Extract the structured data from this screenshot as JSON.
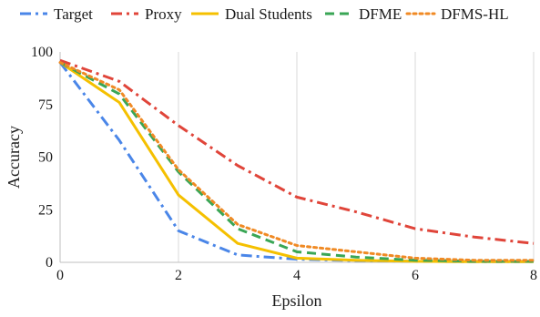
{
  "chart_data": {
    "type": "line",
    "title": "",
    "xlabel": "Epsilon",
    "ylabel": "Accuracy",
    "xlim": [
      0,
      8
    ],
    "ylim": [
      0,
      100
    ],
    "xticks": [
      0,
      2,
      4,
      6,
      8
    ],
    "yticks": [
      0,
      25,
      50,
      75,
      100
    ],
    "grid": "vertical",
    "legend_position": "top",
    "series": [
      {
        "name": "Target",
        "color": "#4a86e8",
        "dash": "dash-dot",
        "x": [
          0,
          1,
          2,
          3,
          4,
          5,
          6,
          7,
          8
        ],
        "y": [
          95,
          58,
          15,
          3.5,
          1.5,
          0.8,
          0.5,
          0.3,
          0.3
        ]
      },
      {
        "name": "Proxy",
        "color": "#e0453a",
        "dash": "dash-dot",
        "x": [
          0,
          1,
          2,
          3,
          4,
          5,
          6,
          7,
          8
        ],
        "y": [
          96,
          86,
          65,
          46,
          31,
          24,
          16,
          12,
          9
        ]
      },
      {
        "name": "Dual Students",
        "color": "#f5c000",
        "dash": "solid",
        "x": [
          0,
          1,
          2,
          3,
          4,
          5,
          6,
          7,
          8
        ],
        "y": [
          95,
          76,
          32,
          9,
          2,
          1,
          0.5,
          0.3,
          0.3
        ]
      },
      {
        "name": "DFME",
        "color": "#3aa655",
        "dash": "dash",
        "x": [
          0,
          1,
          2,
          3,
          4,
          5,
          6,
          7,
          8
        ],
        "y": [
          95,
          80,
          43,
          16,
          5,
          2.5,
          1,
          0.5,
          0.5
        ]
      },
      {
        "name": "DFMS-HL",
        "color": "#f08a24",
        "dash": "dot",
        "x": [
          0,
          1,
          2,
          3,
          4,
          5,
          6,
          7,
          8
        ],
        "y": [
          95,
          82,
          44,
          18,
          8,
          5,
          2,
          1,
          1
        ]
      }
    ]
  }
}
